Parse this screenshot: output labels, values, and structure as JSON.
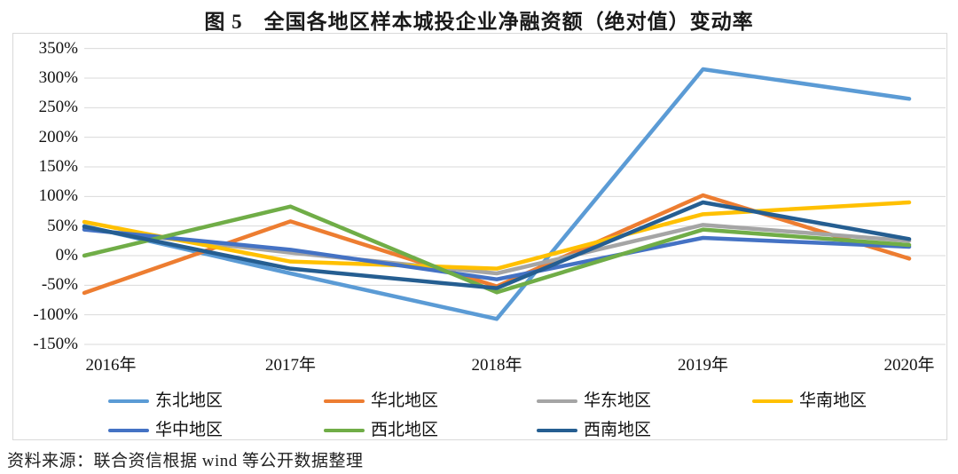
{
  "title": "图 5　全国各地区样本城投企业净融资额（绝对值）变动率",
  "source": "资料来源：联合资信根据 wind 等公开数据整理",
  "chart_data": {
    "type": "line",
    "title": "图 5　全国各地区样本城投企业净融资额（绝对值）变动率",
    "categories": [
      "2016年",
      "2017年",
      "2018年",
      "2019年",
      "2020年"
    ],
    "unit": "%",
    "ylim": [
      -150,
      350
    ],
    "ytick_step": 50,
    "ytick_labels": [
      "350%",
      "300%",
      "250%",
      "200%",
      "150%",
      "100%",
      "50%",
      "0%",
      "-50%",
      "-100%",
      "-150%"
    ],
    "grid": true,
    "legend_position": "bottom",
    "gridline_color": "#d9d9d9",
    "series": [
      {
        "name": "东北地区",
        "color": "#5B9BD5",
        "values": [
          50,
          -30,
          -107,
          315,
          265
        ]
      },
      {
        "name": "华北地区",
        "color": "#ED7D31",
        "values": [
          -63,
          58,
          -52,
          102,
          -5
        ]
      },
      {
        "name": "华东地区",
        "color": "#A5A5A5",
        "values": [
          45,
          5,
          -30,
          52,
          25
        ]
      },
      {
        "name": "华南地区",
        "color": "#FFC000",
        "values": [
          57,
          -10,
          -22,
          70,
          90
        ]
      },
      {
        "name": "华中地区",
        "color": "#4472C4",
        "values": [
          44,
          10,
          -40,
          30,
          15
        ]
      },
      {
        "name": "西北地区",
        "color": "#70AD47",
        "values": [
          0,
          83,
          -62,
          44,
          18
        ]
      },
      {
        "name": "西南地区",
        "color": "#255E91",
        "values": [
          49,
          -22,
          -55,
          90,
          28
        ]
      }
    ]
  }
}
